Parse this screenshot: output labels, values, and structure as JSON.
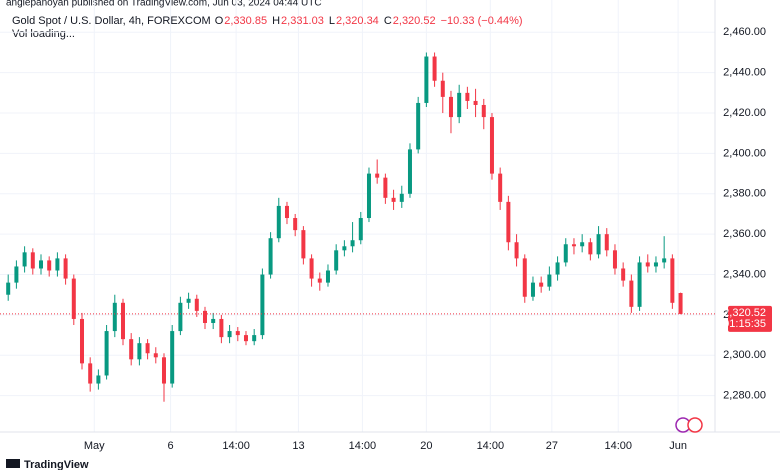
{
  "chart_data": {
    "type": "candlestick",
    "publisher": "anglepanoyan published on TradingView.com, Jun 03, 2024 04:44 UTC",
    "title": "Gold Spot / U.S. Dollar, 4h, FOREXCOM",
    "ohlc_legend": [
      {
        "key": "O",
        "value": "2,330.85"
      },
      {
        "key": "H",
        "value": "2,331.03"
      },
      {
        "key": "L",
        "value": "2,320.34"
      },
      {
        "key": "C",
        "value": "2,320.52"
      }
    ],
    "change": "−10.33 (−0.44%)",
    "volume_note": "Vol loading...",
    "brand": "TradingView",
    "up_color": "#089981",
    "down_color": "#f23645",
    "grid": true,
    "open": [
      2330,
      2336,
      2344,
      2351,
      2343,
      2347,
      2342,
      2348,
      2338,
      2318,
      2296,
      2286,
      2290,
      2312,
      2326,
      2308,
      2298,
      2306,
      2301,
      2299,
      2286,
      2312,
      2326,
      2328,
      2322,
      2316,
      2318,
      2309,
      2312,
      2310,
      2307,
      2310,
      2340,
      2358,
      2374,
      2368,
      2362,
      2348,
      2338,
      2336,
      2342,
      2352,
      2354,
      2357,
      2368,
      2390,
      2388,
      2378,
      2376,
      2380,
      2402,
      2425,
      2448,
      2436,
      2428,
      2418,
      2430,
      2426,
      2424,
      2418,
      2390,
      2376,
      2356,
      2348,
      2329,
      2336,
      2334,
      2340,
      2346,
      2355,
      2354,
      2356,
      2350,
      2360,
      2352,
      2343,
      2337,
      2324,
      2346,
      2344,
      2346,
      2348,
      2330.85
    ],
    "high": [
      2340,
      2347,
      2354,
      2353,
      2350,
      2349,
      2351,
      2350,
      2340,
      2321,
      2299,
      2293,
      2315,
      2330,
      2328,
      2311,
      2309,
      2308,
      2304,
      2301,
      2315,
      2329,
      2331,
      2330,
      2324,
      2321,
      2320,
      2315,
      2314,
      2312,
      2313,
      2343,
      2361,
      2378,
      2376,
      2370,
      2364,
      2350,
      2341,
      2345,
      2355,
      2357,
      2366,
      2371,
      2393,
      2397,
      2390,
      2382,
      2384,
      2405,
      2428,
      2450,
      2450,
      2440,
      2431,
      2434,
      2433,
      2432,
      2427,
      2420,
      2393,
      2379,
      2360,
      2350,
      2339,
      2339,
      2344,
      2349,
      2358,
      2358,
      2360,
      2358,
      2364,
      2363,
      2355,
      2346,
      2340,
      2349,
      2350,
      2349,
      2359,
      2350,
      2331.03
    ],
    "low": [
      2327,
      2333,
      2341,
      2340,
      2340,
      2339,
      2339,
      2335,
      2315,
      2293,
      2282,
      2283,
      2288,
      2309,
      2305,
      2295,
      2295,
      2298,
      2296,
      2277,
      2284,
      2310,
      2323,
      2319,
      2313,
      2313,
      2306,
      2306,
      2307,
      2305,
      2305,
      2308,
      2338,
      2356,
      2365,
      2359,
      2345,
      2334,
      2332,
      2334,
      2340,
      2349,
      2351,
      2355,
      2366,
      2385,
      2375,
      2372,
      2373,
      2378,
      2400,
      2423,
      2433,
      2420,
      2410,
      2415,
      2422,
      2418,
      2412,
      2387,
      2372,
      2352,
      2344,
      2326,
      2327,
      2331,
      2332,
      2337,
      2344,
      2350,
      2351,
      2347,
      2348,
      2349,
      2340,
      2334,
      2321,
      2322,
      2341,
      2341,
      2343,
      2323,
      2320.34
    ],
    "close": [
      2336,
      2344,
      2351,
      2343,
      2347,
      2342,
      2348,
      2338,
      2318,
      2296,
      2286,
      2290,
      2312,
      2326,
      2308,
      2298,
      2306,
      2301,
      2299,
      2286,
      2312,
      2326,
      2328,
      2322,
      2316,
      2318,
      2309,
      2312,
      2310,
      2307,
      2310,
      2340,
      2358,
      2374,
      2368,
      2362,
      2348,
      2338,
      2336,
      2342,
      2352,
      2354,
      2357,
      2368,
      2390,
      2388,
      2378,
      2376,
      2380,
      2402,
      2425,
      2448,
      2436,
      2428,
      2418,
      2430,
      2426,
      2424,
      2418,
      2390,
      2376,
      2356,
      2348,
      2329,
      2336,
      2334,
      2340,
      2346,
      2355,
      2354,
      2356,
      2350,
      2360,
      2352,
      2343,
      2337,
      2324,
      2346,
      2344,
      2346,
      2348,
      2326,
      2320.52
    ],
    "xlim": [
      -1,
      86.2
    ],
    "xticks": [
      {
        "value": 10.5,
        "label": "May"
      },
      {
        "value": 19.8,
        "label": "6"
      },
      {
        "value": 27.8,
        "label": "14:00"
      },
      {
        "value": 35.4,
        "label": "13"
      },
      {
        "value": 43.2,
        "label": "14:00"
      },
      {
        "value": 51,
        "label": "20"
      },
      {
        "value": 58.8,
        "label": "14:00"
      },
      {
        "value": 66.3,
        "label": "27"
      },
      {
        "value": 74.4,
        "label": "14:00"
      },
      {
        "value": 81.7,
        "label": "Jun"
      }
    ],
    "ylim": [
      2262,
      2476
    ],
    "yticks": [
      {
        "value": 2280,
        "label": "2,280.00"
      },
      {
        "value": 2300,
        "label": "2,300.00"
      },
      {
        "value": 2320,
        "label": "2,320.00"
      },
      {
        "value": 2340,
        "label": "2,340.00"
      },
      {
        "value": 2360,
        "label": "2,360.00"
      },
      {
        "value": 2380,
        "label": "2,380.00"
      },
      {
        "value": 2400,
        "label": "2,400.00"
      },
      {
        "value": 2420,
        "label": "2,420.00"
      },
      {
        "value": 2440,
        "label": "2,440.00"
      },
      {
        "value": 2460,
        "label": "2,460.00"
      }
    ],
    "last_price": {
      "value": 2320.52,
      "label": "2,320.52"
    },
    "countdown": "01:15:35"
  }
}
